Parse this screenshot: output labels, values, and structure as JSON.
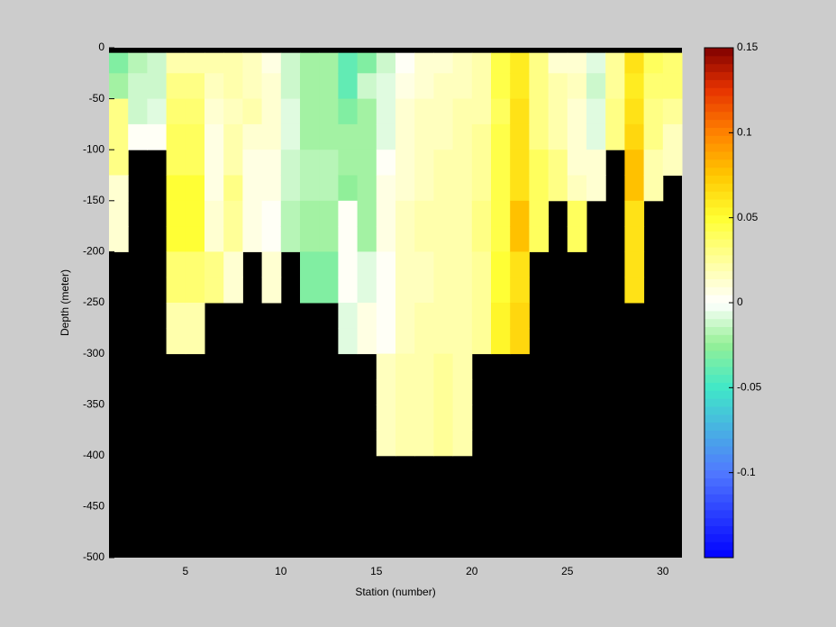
{
  "chart_data": {
    "type": "heatmap",
    "xlabel": "Station (number)",
    "ylabel": "Depth (meter)",
    "xlim": [
      1,
      31
    ],
    "ylim": [
      -500,
      0
    ],
    "xticks": [
      5,
      10,
      15,
      20,
      25,
      30
    ],
    "yticks": [
      0,
      -50,
      -100,
      -150,
      -200,
      -250,
      -300,
      -350,
      -400,
      -450,
      -500
    ],
    "x_bins": [
      1,
      2,
      3,
      4,
      5,
      6,
      7,
      8,
      9,
      10,
      11,
      12,
      13,
      14,
      15,
      16,
      17,
      18,
      19,
      20,
      21,
      22,
      23,
      24,
      25,
      26,
      27,
      28,
      29,
      30,
      31
    ],
    "y_bins": [
      -5,
      -25,
      -50,
      -75,
      -100,
      -125,
      -150,
      -175,
      -200,
      -225,
      -250,
      -275,
      -300,
      -325,
      -350,
      -375,
      -400
    ],
    "z": [
      [
        -0.03,
        -0.02,
        0.03,
        0.03,
        0.03,
        0.01,
        0.01,
        0.01,
        null,
        null,
        null,
        null,
        null,
        null,
        null,
        null
      ],
      [
        -0.015,
        -0.01,
        -0.01,
        0,
        null,
        null,
        null,
        null,
        null,
        null,
        null,
        null,
        null,
        null,
        null,
        null
      ],
      [
        -0.01,
        -0.01,
        -0.005,
        0,
        null,
        null,
        null,
        null,
        null,
        null,
        null,
        null,
        null,
        null,
        null,
        null
      ],
      [
        0.02,
        0.03,
        0.035,
        0.04,
        0.04,
        0.05,
        0.05,
        0.05,
        0.035,
        0.035,
        0.02,
        0.02,
        null,
        null,
        null,
        null
      ],
      [
        0.02,
        0.03,
        0.035,
        0.04,
        0.04,
        0.05,
        0.05,
        0.05,
        0.035,
        0.035,
        0.02,
        0.02,
        null,
        null,
        null,
        null
      ],
      [
        0.02,
        0.015,
        0.01,
        0.005,
        0.005,
        0.005,
        0.01,
        0.01,
        0.03,
        0.03,
        null,
        null,
        null,
        null,
        null,
        null
      ],
      [
        0.02,
        0.02,
        0.015,
        0.02,
        0.02,
        0.03,
        0.025,
        0.025,
        0.01,
        0.01,
        null,
        null,
        null,
        null,
        null,
        null
      ],
      [
        0.015,
        0.015,
        0.02,
        0.01,
        0.005,
        0.005,
        0.005,
        0.005,
        null,
        null,
        null,
        null,
        null,
        null,
        null,
        null
      ],
      [
        0.005,
        0.01,
        0.01,
        0.01,
        0.005,
        0.005,
        0,
        0,
        0.01,
        0.01,
        null,
        null,
        null,
        null,
        null,
        null
      ],
      [
        -0.01,
        -0.01,
        -0.005,
        -0.005,
        -0.01,
        -0.01,
        -0.015,
        -0.015,
        null,
        null,
        null,
        null,
        null,
        null,
        null,
        null
      ],
      [
        -0.02,
        -0.02,
        -0.02,
        -0.02,
        -0.015,
        -0.015,
        -0.02,
        -0.02,
        -0.03,
        -0.03,
        null,
        null,
        null,
        null,
        null,
        null
      ],
      [
        -0.02,
        -0.02,
        -0.02,
        -0.02,
        -0.015,
        -0.015,
        -0.02,
        -0.02,
        -0.03,
        -0.03,
        null,
        null,
        null,
        null,
        null,
        null
      ],
      [
        -0.04,
        -0.04,
        -0.03,
        -0.02,
        -0.02,
        -0.025,
        0,
        0,
        0,
        0,
        -0.005,
        -0.005,
        null,
        null,
        null,
        null
      ],
      [
        -0.03,
        -0.01,
        -0.02,
        -0.02,
        -0.02,
        -0.02,
        -0.02,
        -0.02,
        -0.005,
        -0.005,
        0.005,
        0.005,
        null,
        null,
        null,
        null
      ],
      [
        -0.01,
        -0.005,
        -0.005,
        -0.005,
        0,
        0.005,
        0.005,
        0.005,
        0,
        0,
        0,
        0,
        0.015,
        0.015,
        0.015,
        0.015
      ],
      [
        0,
        0.005,
        0.01,
        0.01,
        0.01,
        0.01,
        0.015,
        0.015,
        0.015,
        0.015,
        0.015,
        0.015,
        0.02,
        0.02,
        0.02,
        0.02
      ],
      [
        0.01,
        0.01,
        0.015,
        0.015,
        0.015,
        0.015,
        0.02,
        0.02,
        0.015,
        0.015,
        0.02,
        0.02,
        0.02,
        0.02,
        0.02,
        0.02
      ],
      [
        0.01,
        0.015,
        0.015,
        0.015,
        0.02,
        0.02,
        0.02,
        0.02,
        0.02,
        0.02,
        0.02,
        0.02,
        0.025,
        0.025,
        0.025,
        0.025
      ],
      [
        0.015,
        0.015,
        0.02,
        0.02,
        0.02,
        0.02,
        0.02,
        0.02,
        0.02,
        0.02,
        0.02,
        0.02,
        0.02,
        0.02,
        0.02,
        0.02
      ],
      [
        0.02,
        0.02,
        0.02,
        0.025,
        0.025,
        0.025,
        0.03,
        0.03,
        0.025,
        0.025,
        0.025,
        0.025,
        null,
        null,
        null,
        null
      ],
      [
        0.045,
        0.045,
        0.04,
        0.045,
        0.045,
        0.045,
        0.045,
        0.045,
        0.05,
        0.05,
        0.055,
        0.055,
        null,
        null,
        null,
        null
      ],
      [
        0.06,
        0.06,
        0.065,
        0.065,
        0.065,
        0.065,
        0.075,
        0.075,
        0.065,
        0.065,
        0.07,
        0.07,
        null,
        null,
        null,
        null
      ],
      [
        0.03,
        0.03,
        0.03,
        0.03,
        0.04,
        0.04,
        0.04,
        0.04,
        null,
        null,
        null,
        null,
        null,
        null,
        null,
        null
      ],
      [
        0.01,
        0.02,
        0.02,
        0.02,
        0.03,
        0.03,
        null,
        null,
        null,
        null,
        null,
        null,
        null,
        null,
        null,
        null
      ],
      [
        0.01,
        0.015,
        0.01,
        0.01,
        0.01,
        0.015,
        0.04,
        0.04,
        null,
        null,
        null,
        null,
        null,
        null,
        null,
        null
      ],
      [
        -0.005,
        -0.01,
        -0.005,
        -0.005,
        0.01,
        0.01,
        null,
        null,
        null,
        null,
        null,
        null,
        null,
        null,
        null,
        null
      ],
      [
        0.025,
        0.025,
        0.03,
        0.03,
        null,
        null,
        null,
        null,
        null,
        null,
        null,
        null,
        null,
        null,
        null,
        null
      ],
      [
        0.065,
        0.06,
        0.065,
        0.07,
        0.075,
        0.075,
        0.065,
        0.065,
        0.065,
        0.065,
        null,
        null,
        null,
        null,
        null,
        null
      ],
      [
        0.04,
        0.035,
        0.03,
        0.03,
        0.02,
        0.02,
        null,
        null,
        null,
        null,
        null,
        null,
        null,
        null,
        null,
        null
      ],
      [
        0.035,
        0.035,
        0.025,
        0.015,
        0.015,
        null,
        null,
        null,
        null,
        null,
        null,
        null,
        null,
        null,
        null,
        null
      ]
    ],
    "clim": [
      -0.15,
      0.15
    ],
    "cticks": [
      -0.1,
      -0.05,
      0,
      0.05,
      0.1,
      0.15
    ],
    "background": "#000000"
  }
}
